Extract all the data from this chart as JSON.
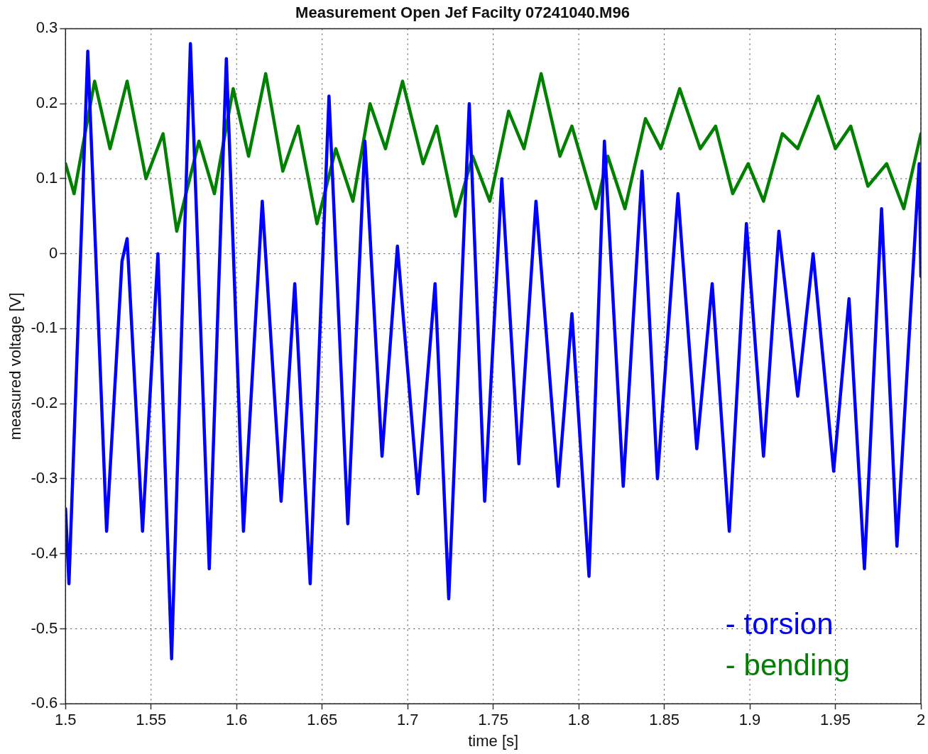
{
  "chart_data": {
    "type": "line",
    "title": "Measurement Open Jef Facilty 07241040.M96",
    "xlabel": "time [s]",
    "ylabel": "measured voltage [V]",
    "xlim": [
      1.5,
      2
    ],
    "xticks": [
      1.5,
      1.55,
      1.6,
      1.65,
      1.7,
      1.75,
      1.8,
      1.85,
      1.9,
      1.95,
      2
    ],
    "ylim": [
      -0.6,
      0.3
    ],
    "yticks": [
      -0.6,
      -0.5,
      -0.4,
      -0.3,
      -0.2,
      -0.1,
      0,
      0.1,
      0.2,
      0.3
    ],
    "grid": true,
    "legend": "bottom right",
    "marker": "none",
    "line_style": "solid",
    "series": [
      {
        "name": "- torsion",
        "color": "#0000ff",
        "x": [
          1.5,
          1.502,
          1.513,
          1.524,
          1.533,
          1.536,
          1.545,
          1.554,
          1.562,
          1.573,
          1.584,
          1.594,
          1.604,
          1.615,
          1.626,
          1.634,
          1.643,
          1.654,
          1.665,
          1.675,
          1.685,
          1.694,
          1.706,
          1.716,
          1.724,
          1.736,
          1.745,
          1.755,
          1.765,
          1.775,
          1.788,
          1.796,
          1.806,
          1.815,
          1.826,
          1.837,
          1.846,
          1.858,
          1.869,
          1.878,
          1.888,
          1.898,
          1.908,
          1.917,
          1.928,
          1.937,
          1.949,
          1.958,
          1.967,
          1.977,
          1.986,
          1.999,
          2.0
        ],
        "values": [
          -0.34,
          -0.44,
          0.27,
          -0.37,
          -0.01,
          0.02,
          -0.37,
          0.0,
          -0.54,
          0.28,
          -0.42,
          0.26,
          -0.37,
          0.07,
          -0.33,
          -0.04,
          -0.44,
          0.21,
          -0.36,
          0.15,
          -0.27,
          0.01,
          -0.32,
          -0.04,
          -0.46,
          0.2,
          -0.33,
          0.1,
          -0.28,
          0.07,
          -0.31,
          -0.08,
          -0.43,
          0.15,
          -0.31,
          0.11,
          -0.3,
          0.08,
          -0.26,
          -0.04,
          -0.37,
          0.04,
          -0.27,
          0.03,
          -0.19,
          0.0,
          -0.29,
          -0.06,
          -0.42,
          0.06,
          -0.39,
          0.12,
          -0.03
        ]
      },
      {
        "name": "- bending",
        "color": "#008000",
        "x": [
          1.5,
          1.505,
          1.517,
          1.526,
          1.536,
          1.547,
          1.557,
          1.565,
          1.578,
          1.587,
          1.598,
          1.607,
          1.617,
          1.627,
          1.636,
          1.647,
          1.658,
          1.668,
          1.678,
          1.687,
          1.697,
          1.709,
          1.717,
          1.728,
          1.738,
          1.748,
          1.759,
          1.768,
          1.778,
          1.789,
          1.796,
          1.81,
          1.817,
          1.827,
          1.839,
          1.848,
          1.859,
          1.871,
          1.88,
          1.89,
          1.899,
          1.908,
          1.919,
          1.928,
          1.94,
          1.95,
          1.959,
          1.969,
          1.98,
          1.99,
          2.0
        ],
        "values": [
          0.12,
          0.08,
          0.23,
          0.14,
          0.23,
          0.1,
          0.16,
          0.03,
          0.15,
          0.08,
          0.22,
          0.13,
          0.24,
          0.11,
          0.17,
          0.04,
          0.14,
          0.07,
          0.2,
          0.14,
          0.23,
          0.12,
          0.17,
          0.05,
          0.13,
          0.07,
          0.19,
          0.14,
          0.24,
          0.13,
          0.17,
          0.06,
          0.13,
          0.06,
          0.18,
          0.14,
          0.22,
          0.14,
          0.17,
          0.08,
          0.12,
          0.07,
          0.16,
          0.14,
          0.21,
          0.14,
          0.17,
          0.09,
          0.12,
          0.06,
          0.16
        ]
      }
    ]
  }
}
